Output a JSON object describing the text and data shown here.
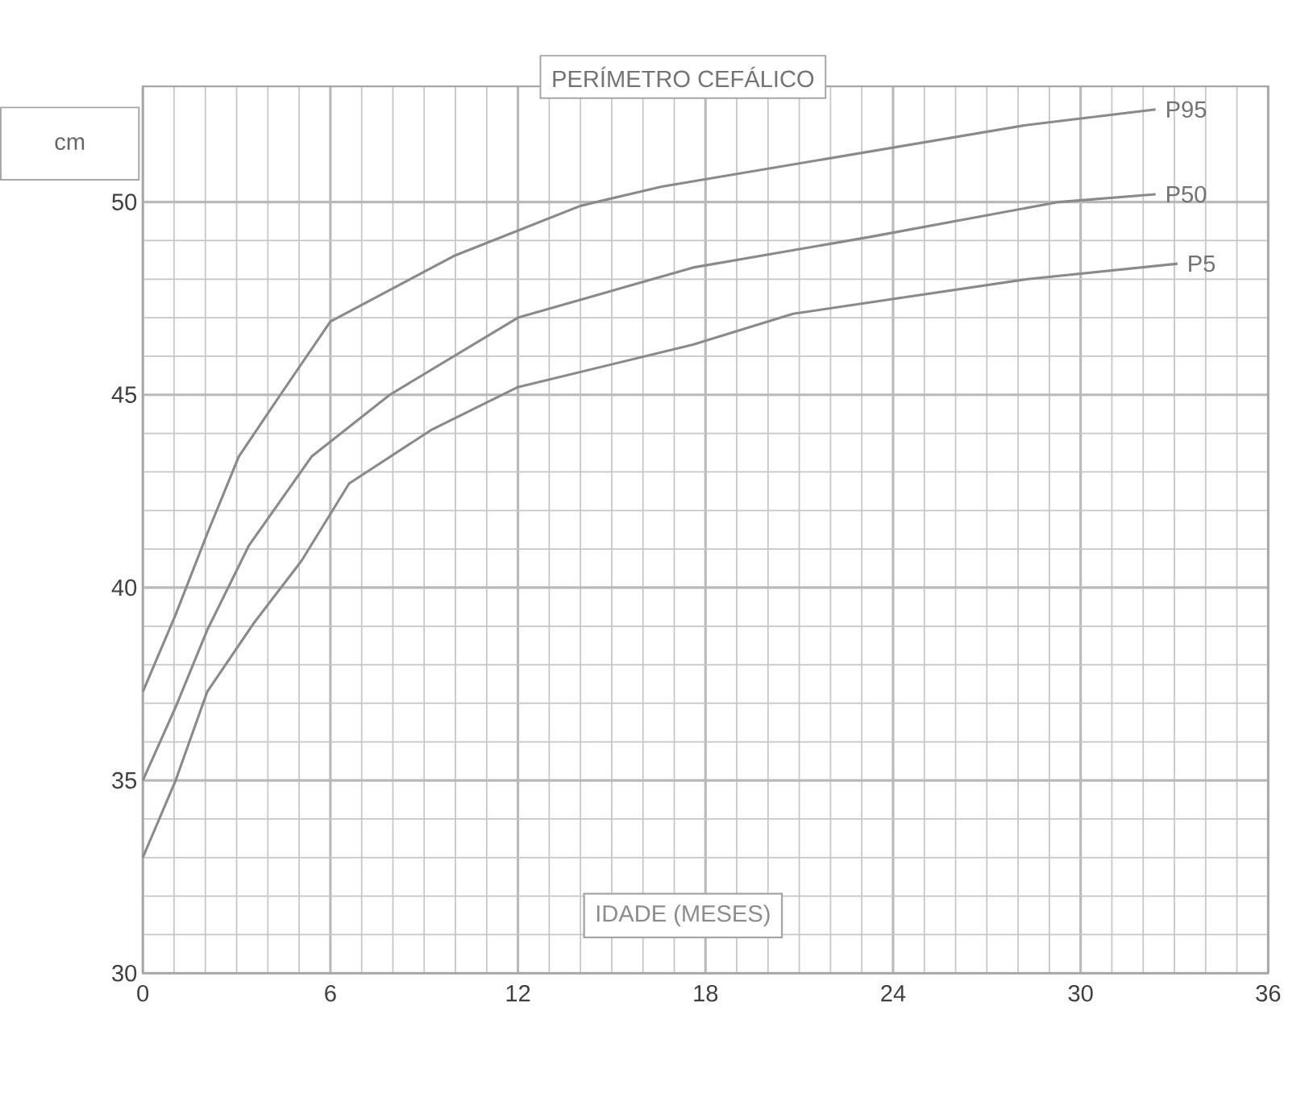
{
  "chart_data": {
    "type": "line",
    "title": "PERÍMETRO CEFÁLICO",
    "xlabel": "IDADE (MESES)",
    "ylabel": "cm",
    "xlim": [
      0,
      36
    ],
    "ylim": [
      30,
      53
    ],
    "xticks": [
      0,
      6,
      12,
      18,
      24,
      30,
      36
    ],
    "yticks": [
      30,
      35,
      40,
      45,
      50
    ],
    "grid": true,
    "marker": "none",
    "line_style": "solid",
    "series": [
      {
        "name": "P95",
        "color": "#8a8a8a",
        "x": [
          0,
          1.05,
          2.06,
          3.07,
          4.4,
          6,
          9.95,
          14,
          16.6,
          28.3,
          32.4
        ],
        "values": [
          37.3,
          39.3,
          41.4,
          43.4,
          45,
          46.9,
          48.6,
          49.9,
          50.4,
          52,
          52.4
        ]
      },
      {
        "name": "P50",
        "color": "#8a8a8a",
        "x": [
          0,
          1.05,
          2.06,
          3.4,
          5.4,
          7.9,
          12,
          17.6,
          23.3,
          29.3,
          32.4
        ],
        "values": [
          35,
          36.9,
          38.9,
          41.1,
          43.4,
          45,
          47,
          48.3,
          49.1,
          50,
          50.2
        ]
      },
      {
        "name": "P5",
        "color": "#8a8a8a",
        "x": [
          0,
          1.05,
          2.06,
          3.57,
          5.08,
          6.6,
          9.25,
          12,
          17.6,
          20.8,
          28.3,
          33.1
        ],
        "values": [
          33,
          35,
          37.3,
          39.1,
          40.7,
          42.7,
          44.1,
          45.2,
          46.3,
          47.1,
          48,
          48.4
        ]
      }
    ]
  }
}
